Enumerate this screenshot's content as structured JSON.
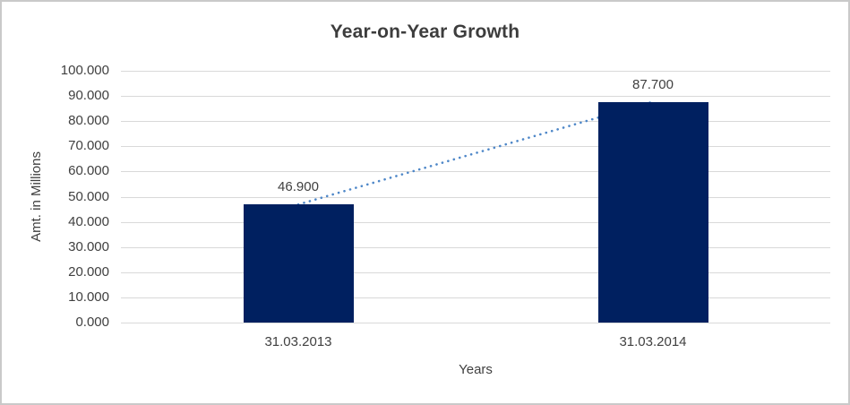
{
  "chart": {
    "title": "Year-on-Year Growth",
    "x_axis_title": "Years",
    "y_axis_title": "Amt. in Millions"
  },
  "chart_data": {
    "type": "bar",
    "title": "Year-on-Year Growth",
    "categories": [
      "31.03.2013",
      "31.03.2014"
    ],
    "values": [
      46.9,
      87.7
    ],
    "data_labels": [
      "46.900",
      "87.700"
    ],
    "xlabel": "Years",
    "ylabel": "Amt. in Millions",
    "ylim": [
      0,
      100
    ],
    "y_tick_step": 10,
    "y_tick_labels": [
      "100.000",
      "90.000",
      "80.000",
      "70.000",
      "60.000",
      "50.000",
      "40.000",
      "30.000",
      "20.000",
      "10.000",
      "0.000"
    ],
    "grid": true,
    "legend": "none",
    "trendline": {
      "style": "dotted",
      "connects": "bar-top-centers"
    },
    "colors": {
      "bar": "#002060",
      "trendline": "#4e87c8",
      "gridline": "#d9d9d9",
      "axis_text": "#404040",
      "title_text": "#3d3d3d"
    }
  }
}
